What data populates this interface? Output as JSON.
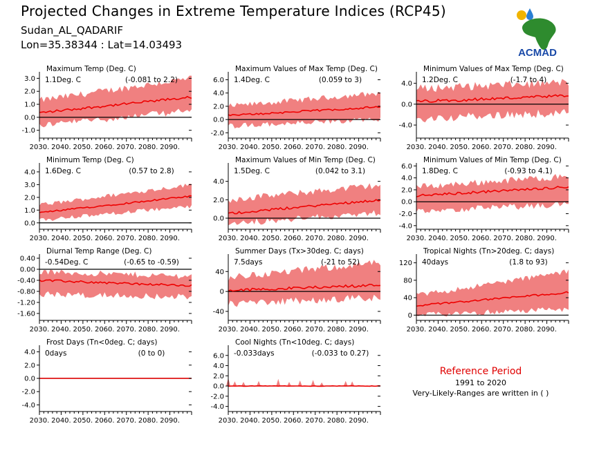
{
  "header": {
    "title": "Projected Changes in Extreme Temperature Indices (RCP45)",
    "subtitle_location": "Sudan_AL_QADARIF",
    "subtitle_coords": "Lon=35.38344 : Lat=14.03493"
  },
  "logo": {
    "text": "ACMAD",
    "icon": "africa-map-logo",
    "colors": {
      "map": "#2e8b2e",
      "text": "#1a4aa8",
      "drop": "#2a7fd4",
      "sun": "#f0b400"
    }
  },
  "colors": {
    "band": "#f08080",
    "line": "#ee0000",
    "zero_line": "#000000"
  },
  "reference": {
    "title": "Reference Period",
    "years": "1991 to 2020",
    "note": "Very-Likely-Ranges are written in ( )"
  },
  "chart_data": [
    {
      "type": "line",
      "title": "Maximum Temp (Deg. C)",
      "value_label": "1.1Deg. C",
      "range_label": "(-0.081 to 2.2)",
      "x": [
        2030,
        2100
      ],
      "xticks": [
        "2030.",
        "2040.",
        "2050.",
        "2060.",
        "2070.",
        "2080.",
        "2090."
      ],
      "ylim": [
        -1.6,
        3.5
      ],
      "yticks": [
        -1.0,
        0.0,
        1.0,
        2.0,
        3.0
      ],
      "ytick_labels": [
        "-1.0",
        "0.0",
        "1.0",
        "2.0",
        "3.0"
      ],
      "series": [
        {
          "start": 0.35,
          "end": 1.55,
          "low_start": -0.6,
          "low_end": 0.5,
          "high_start": 1.3,
          "high_end": 3.0
        }
      ]
    },
    {
      "type": "line",
      "title": "Maximum Values of Max Temp (Deg. C)",
      "value_label": "1.4Deg. C",
      "range_label": "(0.059 to 3)",
      "x": [
        2030,
        2100
      ],
      "xticks": [
        "2030.",
        "2040.",
        "2050.",
        "2060.",
        "2070.",
        "2080.",
        "2090."
      ],
      "ylim": [
        -2.8,
        7.2
      ],
      "yticks": [
        -2.0,
        0.0,
        2.0,
        4.0,
        6.0
      ],
      "ytick_labels": [
        "-2.0",
        "0.0",
        "2.0",
        "4.0",
        "6.0"
      ],
      "series": [
        {
          "start": 0.6,
          "end": 1.9,
          "low_start": -1.0,
          "low_end": 0.0,
          "high_start": 2.0,
          "high_end": 4.0
        }
      ]
    },
    {
      "type": "line",
      "title": "Minimum Values of Max Temp (Deg. C)",
      "value_label": "1.2Deg. C",
      "range_label": "(-1.7 to 4)",
      "x": [
        2030,
        2100
      ],
      "xticks": [
        "2030.",
        "2040.",
        "2050.",
        "2060.",
        "2070.",
        "2080.",
        "2090."
      ],
      "ylim": [
        -6.5,
        6.2
      ],
      "yticks": [
        -4.0,
        0.0,
        4.0
      ],
      "ytick_labels": [
        "-4.0",
        "0.0",
        "4.0"
      ],
      "series": [
        {
          "start": 0.5,
          "end": 1.6,
          "low_start": -2.8,
          "low_end": -1.6,
          "high_start": 3.0,
          "high_end": 4.2
        }
      ]
    },
    {
      "type": "line",
      "title": "Minimum Temp (Deg. C)",
      "value_label": "1.6Deg. C",
      "range_label": "(0.57 to 2.8)",
      "x": [
        2030,
        2100
      ],
      "xticks": [
        "2030.",
        "2040.",
        "2050.",
        "2060.",
        "2070.",
        "2080.",
        "2090."
      ],
      "ylim": [
        -0.5,
        4.7
      ],
      "yticks": [
        0.0,
        1.0,
        2.0,
        3.0,
        4.0
      ],
      "ytick_labels": [
        "0.0",
        "1.0",
        "2.0",
        "3.0",
        "4.0"
      ],
      "series": [
        {
          "start": 0.8,
          "end": 2.1,
          "low_start": 0.2,
          "low_end": 1.3,
          "high_start": 1.4,
          "high_end": 3.0
        }
      ]
    },
    {
      "type": "line",
      "title": "Maximum Values of Min Temp (Deg. C)",
      "value_label": "1.5Deg. C",
      "range_label": "(0.042 to 3.1)",
      "x": [
        2030,
        2100
      ],
      "xticks": [
        "2030.",
        "2040.",
        "2050.",
        "2060.",
        "2070.",
        "2080.",
        "2090."
      ],
      "ylim": [
        -1.2,
        6.0
      ],
      "yticks": [
        0.0,
        2.0,
        4.0
      ],
      "ytick_labels": [
        "0.0",
        "2.0",
        "4.0"
      ],
      "series": [
        {
          "start": 0.5,
          "end": 2.0,
          "low_start": -0.6,
          "low_end": 0.6,
          "high_start": 2.0,
          "high_end": 3.6
        }
      ]
    },
    {
      "type": "line",
      "title": "Minimum Values of Min Temp (Deg. C)",
      "value_label": "1.8Deg. C",
      "range_label": "(-0.93 to 4.1)",
      "x": [
        2030,
        2100
      ],
      "xticks": [
        "2030.",
        "2040.",
        "2050.",
        "2060.",
        "2070.",
        "2080.",
        "2090."
      ],
      "ylim": [
        -4.6,
        6.5
      ],
      "yticks": [
        -4.0,
        -2.0,
        0.0,
        2.0,
        4.0,
        6.0
      ],
      "ytick_labels": [
        "-4.0",
        "-2.0",
        "0.0",
        "2.0",
        "4.0",
        "6.0"
      ],
      "series": [
        {
          "start": 1.0,
          "end": 2.5,
          "low_start": -1.5,
          "low_end": -0.5,
          "high_start": 2.5,
          "high_end": 4.3
        }
      ]
    },
    {
      "type": "line",
      "title": "Diurnal Temp Range (Deg. C)",
      "value_label": "-0.54Deg. C",
      "range_label": "(-0.65 to -0.59)",
      "x": [
        2030,
        2100
      ],
      "xticks": [
        "2030.",
        "2040.",
        "2050.",
        "2060.",
        "2070.",
        "2080.",
        "2090."
      ],
      "ylim": [
        -1.85,
        0.55
      ],
      "yticks": [
        -1.6,
        -1.2,
        -0.8,
        -0.4,
        0.0,
        0.4
      ],
      "ytick_labels": [
        "-1.60",
        "-1.20",
        "-0.80",
        "-0.40",
        "0.00",
        "0.40"
      ],
      "series": [
        {
          "start": -0.4,
          "end": -0.6,
          "low_start": -0.9,
          "low_end": -1.0,
          "high_start": -0.1,
          "high_end": -0.25
        }
      ]
    },
    {
      "type": "line",
      "title": "Summer Days (Tx>30deg. C; days)",
      "value_label": "7.5days",
      "range_label": "(-21 to 52)",
      "x": [
        2030,
        2100
      ],
      "xticks": [
        "2030.",
        "2040.",
        "2050.",
        "2060.",
        "2070.",
        "2080.",
        "2090."
      ],
      "ylim": [
        -58,
        75
      ],
      "yticks": [
        -40,
        0,
        40
      ],
      "ytick_labels": [
        "-40",
        "0",
        "40"
      ],
      "series": [
        {
          "start": 2,
          "end": 13,
          "low_start": -25,
          "low_end": -12,
          "high_start": 28,
          "high_end": 58
        }
      ]
    },
    {
      "type": "line",
      "title": "Tropical Nights (Tn>20deg. C; days)",
      "value_label": "40days",
      "range_label": "(1.8 to 93)",
      "x": [
        2030,
        2100
      ],
      "xticks": [
        "2030.",
        "2040.",
        "2050.",
        "2060.",
        "2070.",
        "2080.",
        "2090."
      ],
      "ylim": [
        -12,
        140
      ],
      "yticks": [
        0,
        40,
        80,
        120
      ],
      "ytick_labels": [
        "0",
        "40",
        "80",
        "120"
      ],
      "series": [
        {
          "start": 22,
          "end": 52,
          "low_start": 0,
          "low_end": 14,
          "high_start": 45,
          "high_end": 100
        }
      ]
    },
    {
      "type": "line",
      "title": "Frost Days (Tn<0deg. C; days)",
      "value_label": "0days",
      "range_label": "(0 to 0)",
      "x": [
        2030,
        2100
      ],
      "xticks": [
        "2030.",
        "2040.",
        "2050.",
        "2060.",
        "2070.",
        "2080.",
        "2090."
      ],
      "ylim": [
        -5.0,
        5.0
      ],
      "yticks": [
        -4.0,
        -2.0,
        0.0,
        2.0,
        4.0
      ],
      "ytick_labels": [
        "-4.0",
        "-2.0",
        "0.0",
        "2.0",
        "4.0"
      ],
      "series": [
        {
          "start": 0,
          "end": 0,
          "low_start": 0,
          "low_end": 0,
          "high_start": 0,
          "high_end": 0
        }
      ]
    },
    {
      "type": "line",
      "title": "Cool Nights (Tn<10deg. C; days)",
      "value_label": "-0.033days",
      "range_label": "(-0.033 to 0.27)",
      "x": [
        2030,
        2100
      ],
      "xticks": [
        "2030.",
        "2040.",
        "2050.",
        "2060.",
        "2070.",
        "2080.",
        "2090."
      ],
      "ylim": [
        -5.0,
        8.0
      ],
      "yticks": [
        -4.0,
        -2.0,
        0.0,
        2.0,
        4.0,
        6.0
      ],
      "ytick_labels": [
        "-4.0",
        "-2.0",
        "0.0",
        "2.0",
        "4.0",
        "6.0"
      ],
      "series": [
        {
          "start": 0,
          "end": 0,
          "low_start": 0,
          "low_end": 0,
          "high_start": 0.9,
          "high_end": 0.5
        }
      ]
    }
  ]
}
